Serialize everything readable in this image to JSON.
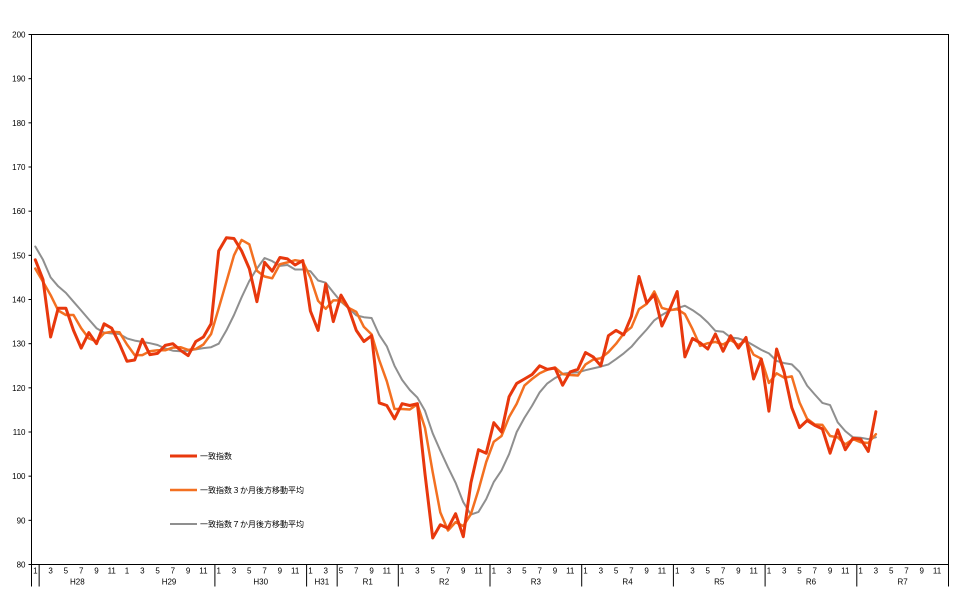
{
  "chart_data": {
    "type": "line",
    "ylim": [
      80,
      200
    ],
    "y_ticks": [
      "80",
      "90",
      "100",
      "110",
      "120",
      "130",
      "140",
      "150",
      "160",
      "170",
      "180",
      "190",
      "200"
    ],
    "grid": false,
    "legend_position": "left",
    "x_month_labels": [
      "1",
      "3",
      "5",
      "7",
      "9",
      "11",
      "1",
      "3",
      "5",
      "7",
      "9",
      "11",
      "1",
      "3",
      "5",
      "7",
      "9",
      "11",
      "1",
      "3",
      "5",
      "7",
      "9",
      "11",
      "1",
      "3",
      "5",
      "7",
      "9",
      "11",
      "1",
      "3",
      "5",
      "7",
      "9",
      "11",
      "1",
      "3",
      "5",
      "7",
      "9",
      "11",
      "1",
      "3",
      "5",
      "7",
      "9",
      "11",
      "1",
      "3",
      "5",
      "7",
      "9",
      "11",
      "1",
      "3",
      "5",
      "7",
      "9",
      "11"
    ],
    "era_labels": [
      {
        "label": "H28",
        "month_index": 5.5
      },
      {
        "label": "H29",
        "month_index": 17.5
      },
      {
        "label": "H30",
        "month_index": 29.5
      },
      {
        "label": "H31",
        "month_index": 37.5
      },
      {
        "label": "R1",
        "month_index": 43.5
      },
      {
        "label": "R2",
        "month_index": 53.5
      },
      {
        "label": "R3",
        "month_index": 65.5
      },
      {
        "label": "R4",
        "month_index": 77.5
      },
      {
        "label": "R5",
        "month_index": 89.5
      },
      {
        "label": "R6",
        "month_index": 101.5
      },
      {
        "label": "R7",
        "month_index": 113.5
      }
    ],
    "era_separators": [
      0,
      23,
      35,
      39,
      47,
      59,
      71,
      83,
      95,
      107,
      119
    ],
    "series": [
      {
        "name": "一致指数",
        "color": "#E8380D",
        "values": [
          149,
          144.5,
          131.5,
          138,
          138,
          133,
          129,
          132.5,
          130,
          134.5,
          133.5,
          130,
          126,
          126.3,
          131,
          127.5,
          127.8,
          129.6,
          130,
          128.5,
          127.3,
          130.5,
          131.5,
          134.5,
          151,
          154,
          153.8,
          151,
          147,
          139.5,
          148.4,
          146.4,
          149.5,
          149.2,
          147.8,
          148.8,
          137.4,
          133,
          143.5,
          135,
          141,
          138,
          133,
          130.5,
          131.8,
          116.6,
          116,
          113,
          116.4,
          116,
          116.4,
          100.5,
          86,
          89,
          88.2,
          91.5,
          86.3,
          98.5,
          106,
          105.2,
          112.1,
          110,
          118,
          121,
          122,
          123,
          125,
          124.2,
          124.5,
          120.6,
          123.6,
          124.2,
          128,
          127,
          125,
          131.8,
          133,
          132,
          136.2,
          145.2,
          139.2,
          141.1,
          134,
          137.7,
          141.8,
          127,
          131.2,
          130.2,
          128.8,
          132.2,
          128.3,
          131.8,
          129,
          131.4,
          122,
          126.5,
          114.7,
          128.8,
          123.5,
          115.5,
          111,
          112.6,
          111.5,
          110.7,
          105.2,
          110.5,
          106,
          108.6,
          108.4,
          105.6,
          114.6
        ]
      },
      {
        "name": "一致指数３か月後方移動平均",
        "color": "#F37021",
        "values": [
          147,
          144,
          141,
          137.5,
          136.5,
          136.5,
          133.5,
          131.2,
          130.5,
          132.4,
          132.7,
          132.6,
          129.8,
          127.4,
          127.4,
          128.3,
          128.5,
          128.5,
          129.1,
          129.2,
          128.6,
          128.8,
          129.8,
          132.2,
          138,
          144,
          150,
          153.5,
          152.5,
          146.5,
          145.2,
          144.8,
          148,
          148.4,
          148.9,
          148.6,
          145,
          139.7,
          137.9,
          139.8,
          139.8,
          138.1,
          137.2,
          133.8,
          132.1,
          126.3,
          121.5,
          115.2,
          115.2,
          115.1,
          116.3,
          110.9,
          100.9,
          91.8,
          87.7,
          89.6,
          88.7,
          91.4,
          96.9,
          103.2,
          107.8,
          109.1,
          113.4,
          116.4,
          120.5,
          122,
          123.3,
          124.1,
          124.6,
          123.1,
          122.9,
          122.8,
          125.3,
          126.4,
          126.7,
          128.1,
          130,
          132.3,
          133.7,
          137.8,
          139,
          141.8,
          138.1,
          137.6,
          137.8,
          136.7,
          133.3,
          129.5,
          130.1,
          130.4,
          129.8,
          130.8,
          129.7,
          130.7,
          127.5,
          126.6,
          121.1,
          123.3,
          122.3,
          122.6,
          116.7,
          113,
          111.7,
          111.6,
          109.1,
          108.8,
          107.2,
          108.4,
          107.7,
          107.5,
          109.5
        ]
      },
      {
        "name": "一致指数７か月後方移動平均",
        "color": "#8F8F8F",
        "values": [
          152,
          149,
          145,
          143,
          141.5,
          139.5,
          137.5,
          135.5,
          133.5,
          132.5,
          132.3,
          132.2,
          131.2,
          130.7,
          130.4,
          130.1,
          129.7,
          128.9,
          128.4,
          128.3,
          128.4,
          128.7,
          129,
          129.2,
          130,
          133,
          136.5,
          140.5,
          144.2,
          147,
          149.4,
          148.7,
          147.6,
          147.8,
          146.8,
          146.8,
          146.4,
          144.3,
          143.8,
          141.6,
          139.5,
          138,
          136.4,
          136,
          135.8,
          132,
          129.4,
          125,
          121.8,
          119.5,
          117.8,
          114.8,
          109.7,
          105.8,
          102,
          98.5,
          94.1,
          91.3,
          91.9,
          94.8,
          98.7,
          101.3,
          105,
          110,
          113.2,
          115.9,
          119,
          121,
          122.2,
          123.2,
          123.4,
          123.5,
          124,
          124.4,
          124.8,
          125.3,
          126.5,
          127.8,
          129.3,
          131.3,
          133.2,
          135.3,
          136.5,
          137.5,
          138,
          138.6,
          137.6,
          136.4,
          134.8,
          132.9,
          132.7,
          131.4,
          131.2,
          130.6,
          129.6,
          128.6,
          127.8,
          126.1,
          125.6,
          125.3,
          123.6,
          120.5,
          118.5,
          116.6,
          116.1,
          112.2,
          110.2,
          108.8,
          108.7,
          108.4,
          108.8
        ]
      }
    ]
  }
}
